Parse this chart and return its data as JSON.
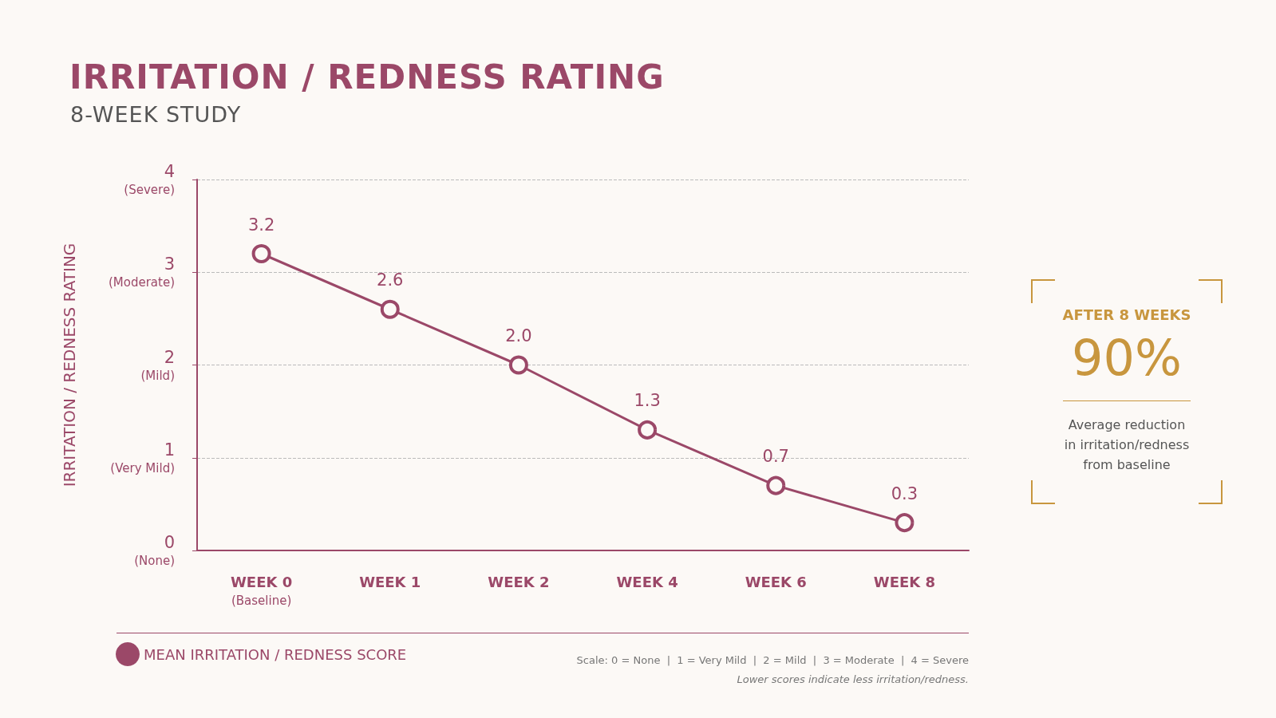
{
  "chart_data": {
    "type": "line",
    "title": "IRRITATION / REDNESS RATING",
    "subtitle": "8-WEEK STUDY",
    "ylabel": "IRRITATION / REDNESS RATING",
    "categories": [
      "WEEK 0\n(Baseline)",
      "WEEK 1",
      "WEEK 2",
      "WEEK 4",
      "WEEK 6",
      "WEEK 8"
    ],
    "series": [
      {
        "name": "MEAN IRRITATION / REDNESS SCORE",
        "color": "#9b4868",
        "values": [
          3.2,
          2.6,
          2.0,
          1.3,
          0.7,
          0.3
        ],
        "value_labels": [
          "3.2",
          "2.6",
          "2.0",
          "1.3",
          "0.7",
          "0.3"
        ]
      }
    ],
    "ylim": [
      0,
      4
    ],
    "yticks": [
      {
        "value": 0,
        "label": "0\n(None)"
      },
      {
        "value": 1,
        "label": "1\n(Very Mild)"
      },
      {
        "value": 2,
        "label": "2\n(Mild)"
      },
      {
        "value": 3,
        "label": "3\n(Moderate)"
      },
      {
        "value": 4,
        "label": "4\n(Severe)"
      }
    ],
    "grid": "y",
    "legend": "bottom left",
    "marker": "circle",
    "line_style": "solid",
    "annotations": [
      "AFTER 8 WEEKS",
      "90%",
      "Average reduction\nin irritation/redness\nfrom baseline",
      "Scale: 0 = None  |  1 = Very Mild  |  2 = Mild  |  3 = Moderate  |  4 = Severe",
      "Lower scores indicate less irritation/redness."
    ]
  }
}
